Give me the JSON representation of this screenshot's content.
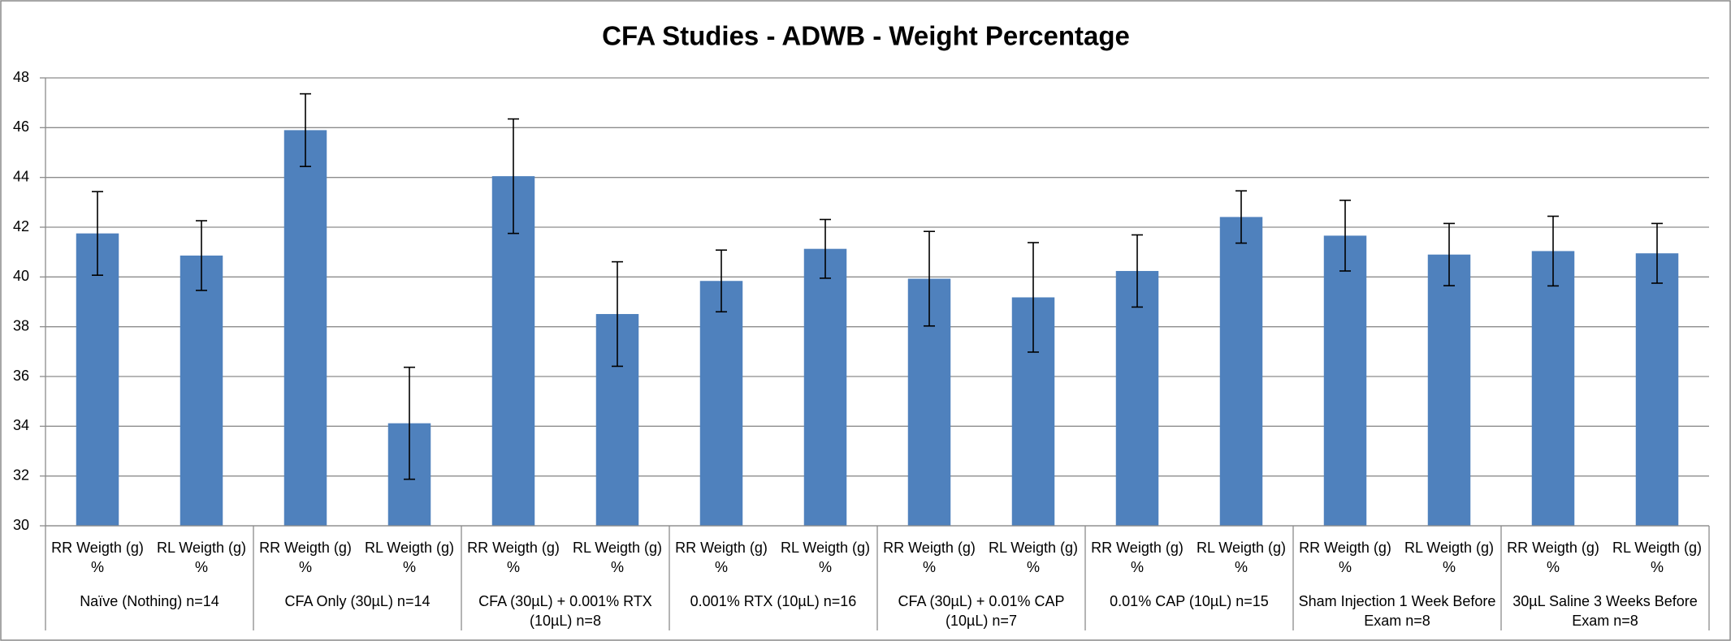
{
  "chart_data": {
    "type": "bar",
    "title": "CFA Studies - ADWB - Weight Percentage",
    "categories": [
      "RR Weigth (g) %",
      "RL Weigth (g) %",
      "RR Weigth (g) %",
      "RL Weigth (g) %",
      "RR Weigth (g) %",
      "RL Weigth (g) %",
      "RR Weigth (g) %",
      "RL Weigth (g) %",
      "RR Weigth (g) %",
      "RL Weigth (g) %",
      "RR Weigth (g) %",
      "RL Weigth (g) %",
      "RR Weigth (g) %",
      "RL Weigth (g) %",
      "RR Weigth (g) %",
      "RL Weigth (g) %"
    ],
    "groups": [
      "Naïve (Nothing) n=14",
      "CFA Only (30µL) n=14",
      "CFA (30µL) + 0.001% RTX (10µL) n=8",
      "0.001% RTX (10µL) n=16",
      "CFA (30µL) + 0.01% CAP (10µL) n=7",
      "0.01% CAP (10µL) n=15",
      "Sham Injection 1 Week Before Exam n=8",
      "30µL Saline 3 Weeks Before Exam n=8"
    ],
    "series": [
      {
        "color": "#4f81bd",
        "values": [
          41.75,
          40.86,
          45.9,
          34.12,
          44.05,
          38.51,
          39.84,
          41.13,
          39.93,
          39.18,
          40.24,
          42.41,
          41.66,
          40.9,
          41.04,
          40.95
        ],
        "errors": [
          1.68,
          1.4,
          1.46,
          2.25,
          2.3,
          2.1,
          1.24,
          1.18,
          1.9,
          2.2,
          1.45,
          1.05,
          1.42,
          1.25,
          1.4,
          1.2
        ]
      }
    ],
    "ylim": [
      30,
      48
    ],
    "yticks": [
      30,
      32,
      34,
      36,
      38,
      40,
      42,
      44,
      46,
      48
    ],
    "grid": true
  }
}
